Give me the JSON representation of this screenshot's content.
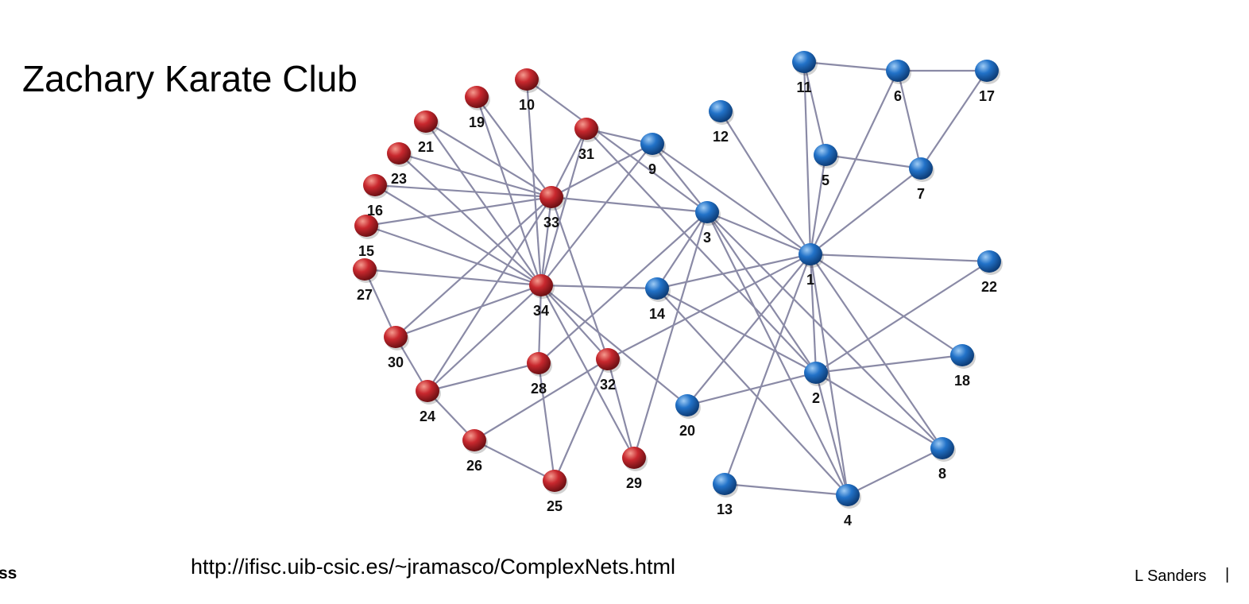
{
  "slide": {
    "title": "Zachary Karate Club",
    "source_url": "http://ifisc.uib-csic.es/~jramasco/ComplexNets.html",
    "footer_left": "ss",
    "footer_author": "L Sanders",
    "footer_separator": "|"
  },
  "graph": {
    "colors": {
      "group_a": "#c0272d",
      "group_b": "#1f6fc5",
      "edge": "#8a8aa6"
    },
    "nodes": [
      {
        "id": "1",
        "group": "b"
      },
      {
        "id": "2",
        "group": "b"
      },
      {
        "id": "3",
        "group": "b"
      },
      {
        "id": "4",
        "group": "b"
      },
      {
        "id": "5",
        "group": "b"
      },
      {
        "id": "6",
        "group": "b"
      },
      {
        "id": "7",
        "group": "b"
      },
      {
        "id": "8",
        "group": "b"
      },
      {
        "id": "9",
        "group": "b"
      },
      {
        "id": "10",
        "group": "a"
      },
      {
        "id": "11",
        "group": "b"
      },
      {
        "id": "12",
        "group": "b"
      },
      {
        "id": "13",
        "group": "b"
      },
      {
        "id": "14",
        "group": "b"
      },
      {
        "id": "15",
        "group": "a"
      },
      {
        "id": "16",
        "group": "a"
      },
      {
        "id": "17",
        "group": "b"
      },
      {
        "id": "18",
        "group": "b"
      },
      {
        "id": "19",
        "group": "a"
      },
      {
        "id": "20",
        "group": "b"
      },
      {
        "id": "21",
        "group": "a"
      },
      {
        "id": "22",
        "group": "b"
      },
      {
        "id": "23",
        "group": "a"
      },
      {
        "id": "24",
        "group": "a"
      },
      {
        "id": "25",
        "group": "a"
      },
      {
        "id": "26",
        "group": "a"
      },
      {
        "id": "27",
        "group": "a"
      },
      {
        "id": "28",
        "group": "a"
      },
      {
        "id": "29",
        "group": "a"
      },
      {
        "id": "30",
        "group": "a"
      },
      {
        "id": "31",
        "group": "a"
      },
      {
        "id": "32",
        "group": "a"
      },
      {
        "id": "33",
        "group": "a"
      },
      {
        "id": "34",
        "group": "a"
      }
    ],
    "edges": [
      [
        "1",
        "2"
      ],
      [
        "1",
        "3"
      ],
      [
        "1",
        "4"
      ],
      [
        "1",
        "5"
      ],
      [
        "1",
        "6"
      ],
      [
        "1",
        "7"
      ],
      [
        "1",
        "8"
      ],
      [
        "1",
        "9"
      ],
      [
        "1",
        "11"
      ],
      [
        "1",
        "12"
      ],
      [
        "1",
        "13"
      ],
      [
        "1",
        "14"
      ],
      [
        "1",
        "18"
      ],
      [
        "1",
        "20"
      ],
      [
        "1",
        "22"
      ],
      [
        "1",
        "32"
      ],
      [
        "2",
        "3"
      ],
      [
        "2",
        "4"
      ],
      [
        "2",
        "8"
      ],
      [
        "2",
        "14"
      ],
      [
        "2",
        "18"
      ],
      [
        "2",
        "20"
      ],
      [
        "2",
        "22"
      ],
      [
        "2",
        "31"
      ],
      [
        "3",
        "4"
      ],
      [
        "3",
        "8"
      ],
      [
        "3",
        "9"
      ],
      [
        "3",
        "10"
      ],
      [
        "3",
        "14"
      ],
      [
        "3",
        "28"
      ],
      [
        "3",
        "29"
      ],
      [
        "3",
        "33"
      ],
      [
        "4",
        "8"
      ],
      [
        "4",
        "13"
      ],
      [
        "4",
        "14"
      ],
      [
        "5",
        "7"
      ],
      [
        "5",
        "11"
      ],
      [
        "6",
        "7"
      ],
      [
        "6",
        "11"
      ],
      [
        "6",
        "17"
      ],
      [
        "7",
        "17"
      ],
      [
        "9",
        "31"
      ],
      [
        "9",
        "33"
      ],
      [
        "9",
        "34"
      ],
      [
        "10",
        "34"
      ],
      [
        "14",
        "34"
      ],
      [
        "15",
        "33"
      ],
      [
        "15",
        "34"
      ],
      [
        "16",
        "33"
      ],
      [
        "16",
        "34"
      ],
      [
        "19",
        "33"
      ],
      [
        "19",
        "34"
      ],
      [
        "20",
        "34"
      ],
      [
        "21",
        "33"
      ],
      [
        "21",
        "34"
      ],
      [
        "23",
        "33"
      ],
      [
        "23",
        "34"
      ],
      [
        "24",
        "26"
      ],
      [
        "24",
        "28"
      ],
      [
        "24",
        "30"
      ],
      [
        "24",
        "33"
      ],
      [
        "24",
        "34"
      ],
      [
        "25",
        "26"
      ],
      [
        "25",
        "28"
      ],
      [
        "25",
        "32"
      ],
      [
        "26",
        "32"
      ],
      [
        "27",
        "30"
      ],
      [
        "27",
        "34"
      ],
      [
        "28",
        "34"
      ],
      [
        "29",
        "32"
      ],
      [
        "29",
        "34"
      ],
      [
        "30",
        "33"
      ],
      [
        "30",
        "34"
      ],
      [
        "31",
        "33"
      ],
      [
        "31",
        "34"
      ],
      [
        "32",
        "33"
      ],
      [
        "32",
        "34"
      ],
      [
        "33",
        "34"
      ]
    ]
  }
}
